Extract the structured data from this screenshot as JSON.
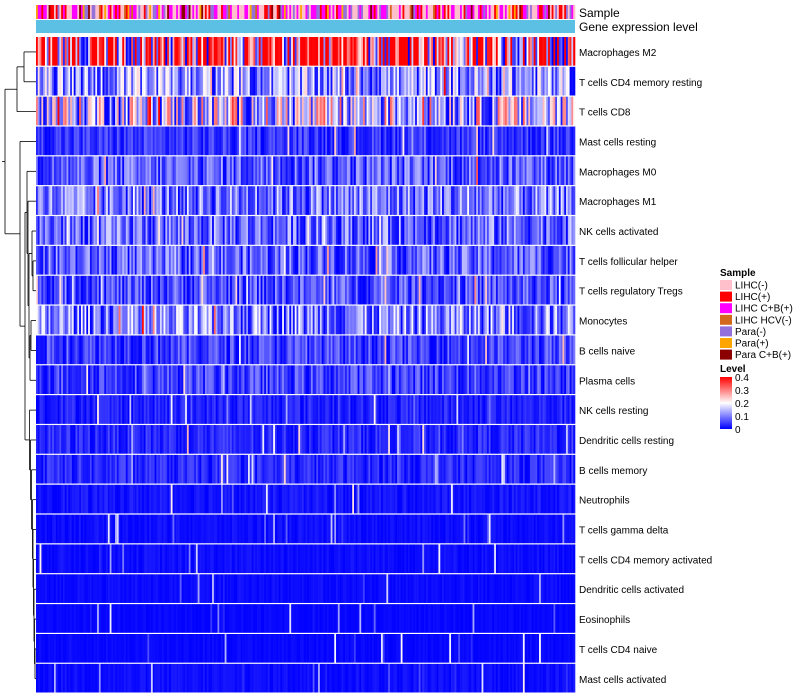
{
  "chart_data": {
    "type": "heatmap",
    "annotation_rows": [
      "Sample",
      "Gene expression level"
    ],
    "rows": [
      "Macrophages M2",
      "T cells CD4 memory resting",
      "T cells CD8",
      "Mast cells resting",
      "Macrophages M0",
      "Macrophages M1",
      "NK cells activated",
      "T cells follicular helper",
      "T cells regulatory  Tregs",
      "Monocytes",
      "B cells naive",
      "Plasma cells",
      "NK cells resting",
      "Dendritic cells resting",
      "B cells memory",
      "Neutrophils",
      "T cells gamma delta",
      "T cells CD4 memory activated",
      "Dendritic cells activated",
      "Eosinophils",
      "T cells CD4 naive",
      "Mast cells activated"
    ],
    "row_mean_level": [
      0.3,
      0.11,
      0.16,
      0.04,
      0.07,
      0.09,
      0.08,
      0.07,
      0.06,
      0.1,
      0.05,
      0.05,
      0.025,
      0.03,
      0.03,
      0.015,
      0.01,
      0.01,
      0.008,
      0.005,
      0.006,
      0.01
    ],
    "color_scale": {
      "min": 0,
      "max": 0.4,
      "colors": [
        "#0000ff",
        "#ffffff",
        "#ff0000"
      ]
    },
    "gene_expression_color": "#5bc0e3",
    "sample_legend": {
      "title": "Sample",
      "items": [
        {
          "label": "LIHC(-)",
          "color": "#ffc0cb"
        },
        {
          "label": "LIHC(+)",
          "color": "#ff0000"
        },
        {
          "label": "LIHC C+B(+)",
          "color": "#ff00ff"
        },
        {
          "label": "LIHC HCV(-)",
          "color": "#d2691e"
        },
        {
          "label": "Para(-)",
          "color": "#9370db"
        },
        {
          "label": "Para(+)",
          "color": "#ffa500"
        },
        {
          "label": "Para C+B(+)",
          "color": "#8b0000"
        }
      ]
    },
    "level_legend": {
      "title": "Level",
      "ticks": [
        "0.4",
        "0.3",
        "0.2",
        "0.1",
        "0"
      ],
      "tick_values": [
        0.4,
        0.3,
        0.2,
        0.1,
        0
      ]
    },
    "num_samples": 300
  }
}
